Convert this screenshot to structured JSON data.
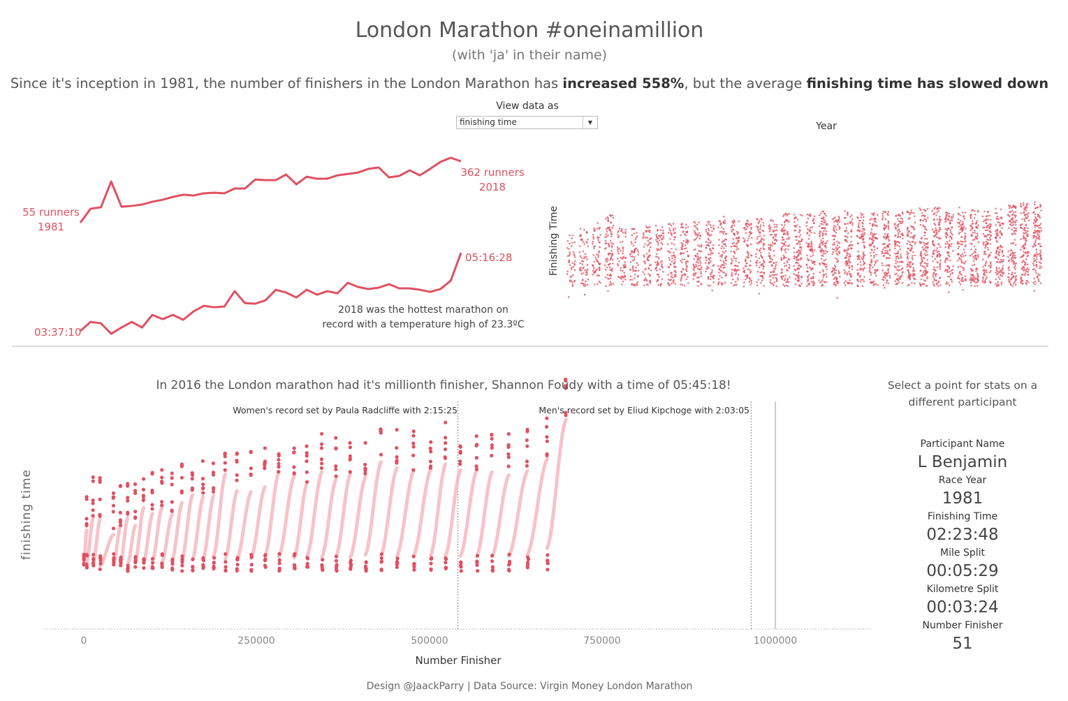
{
  "header": {
    "title": "London Marathon #oneinamillion",
    "subtitle": "(with 'ja' in their name)",
    "headline_part1": "Since it's inception in 1981, the number of finishers in the London Marathon has ",
    "headline_bold1": "increased 558%",
    "headline_part2": ", but the average ",
    "headline_bold2": "finishing time has slowed down"
  },
  "filter": {
    "label": "View data as",
    "selected": "finishing time"
  },
  "colors": {
    "accent": "#e05060",
    "light": "#f4b8c0",
    "text": "#555555"
  },
  "chart_data": [
    {
      "type": "line",
      "years": [
        1981,
        1982,
        1983,
        1984,
        1985,
        1986,
        1987,
        1988,
        1989,
        1990,
        1991,
        1992,
        1993,
        1994,
        1995,
        1996,
        1997,
        1998,
        1999,
        2000,
        2001,
        2002,
        2003,
        2004,
        2005,
        2006,
        2007,
        2008,
        2009,
        2010,
        2011,
        2012,
        2013,
        2014,
        2015,
        2016,
        2017,
        2018
      ],
      "series": [
        {
          "metric": "runners",
          "values": [
            55,
            125,
            132,
            261,
            135,
            139,
            146,
            160,
            170,
            184,
            195,
            191,
            202,
            205,
            202,
            226,
            226,
            271,
            268,
            268,
            296,
            247,
            285,
            275,
            275,
            292,
            299,
            306,
            324,
            331,
            282,
            289,
            317,
            292,
            324,
            359,
            380,
            362
          ]
        },
        {
          "metric": "average finishing time (minutes)",
          "values": [
            217.2,
            228.7,
            226.9,
            213.6,
            221.6,
            228.7,
            221.6,
            237.6,
            232.2,
            237.6,
            231.4,
            242.0,
            249.1,
            247.3,
            248.2,
            267.7,
            252.6,
            251.8,
            256.2,
            269.5,
            266.0,
            259.7,
            269.5,
            263.3,
            267.7,
            265.1,
            278.4,
            273.1,
            270.4,
            272.2,
            276.6,
            271.3,
            271.3,
            269.5,
            266.8,
            270.4,
            281.0,
            316.5
          ]
        }
      ],
      "labels": {
        "start_runners": "55 runners",
        "start_year": "1981",
        "end_runners": "362 runners",
        "end_year": "2018",
        "start_time": "03:37:10",
        "end_time": "05:16:28",
        "note_line1": "2018 was the hottest marathon on",
        "note_line2": "record with a temperature high of 23.3ºC"
      }
    },
    {
      "type": "scatter",
      "xlabel": "Year",
      "ylabel": "Finishing Time",
      "x_range": [
        1981,
        2018
      ]
    },
    {
      "type": "scatter",
      "title": "In 2016 the London marathon had it's millionth finisher, Shannon Foudy  with a time of 05:45:18!",
      "xlabel": "Number Finisher",
      "ylabel": "finishing time",
      "xticks": [
        0,
        250000,
        500000,
        750000,
        1000000
      ],
      "xtick_labels": [
        "0",
        "250000",
        "500000",
        "750000",
        "1000000"
      ],
      "xlim": [
        -290000,
        1135000
      ],
      "reference_lines": [
        {
          "x": 541000,
          "label": "Women's record set by Paula Radcliffe with 2:15:25",
          "style": "dotted"
        },
        {
          "x": 965000,
          "label": "Men's record set by Eliud Kipchoge with 2:03:05",
          "style": "dotted"
        },
        {
          "x": 1000000,
          "label": "",
          "style": "solid"
        }
      ]
    }
  ],
  "details": {
    "prompt": "Select a point for stats on a different participant",
    "fields": [
      {
        "label": "Participant Name",
        "value": "L Benjamin"
      },
      {
        "label": "Race Year",
        "value": "1981"
      },
      {
        "label": "Finishing Time",
        "value": "02:23:48"
      },
      {
        "label": "Mile Split",
        "value": "00:05:29"
      },
      {
        "label": "Kilometre Split",
        "value": "00:03:24"
      },
      {
        "label": "Number Finisher",
        "value": "51"
      }
    ]
  },
  "footer": "Design @JaackParry | Data Source: Virgin Money London Marathon"
}
